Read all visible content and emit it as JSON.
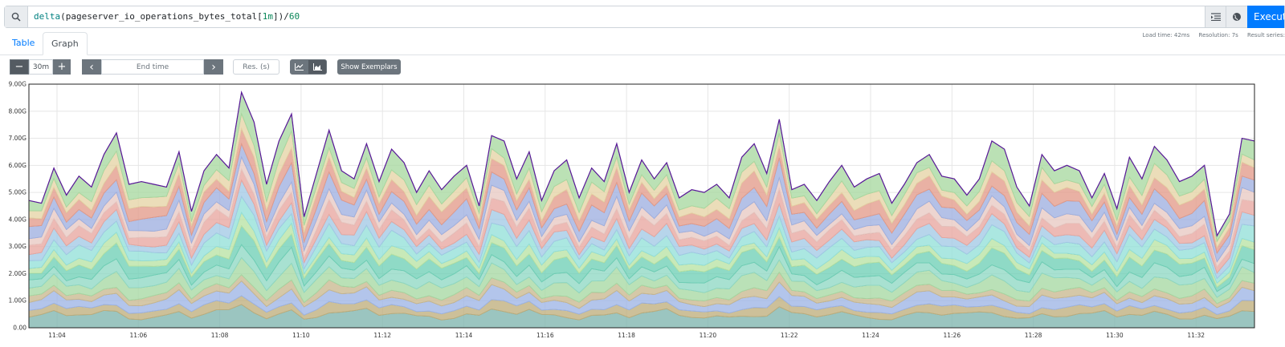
{
  "query": {
    "tokens": [
      {
        "text": "delta",
        "cls": "tok-fn"
      },
      {
        "text": "(",
        "cls": "tok-par"
      },
      {
        "text": "pageserver_io_operations_bytes_total",
        "cls": "tok-metric"
      },
      {
        "text": "[",
        "cls": "tok-par"
      },
      {
        "text": "1m",
        "cls": "tok-dur"
      },
      {
        "text": "])",
        "cls": "tok-par"
      },
      {
        "text": "/",
        "cls": "tok-par"
      },
      {
        "text": "60",
        "cls": "tok-num"
      }
    ],
    "execute_label": "Execute",
    "icons": [
      "search-icon",
      "format-icon",
      "globe-icon"
    ]
  },
  "tabs": [
    {
      "label": "Table"
    },
    {
      "label": "Graph"
    }
  ],
  "stats": {
    "load_time": "Load time: 42ms",
    "resolution": "Resolution: 7s",
    "result_series": "Result series:"
  },
  "controls": {
    "minus": "−",
    "range": "30m",
    "plus": "+",
    "prev": "‹",
    "end_time_placeholder": "End time",
    "next": "›",
    "res_placeholder": "Res. (s)",
    "exemplars_label": "Show Exemplars"
  },
  "chart_data": {
    "type": "area",
    "stacked": true,
    "x": [
      "11:04",
      "11:06",
      "11:08",
      "11:10",
      "11:12",
      "11:14",
      "11:16",
      "11:18",
      "11:20",
      "11:22",
      "11:24",
      "11:26",
      "11:28",
      "11:30",
      "11:32"
    ],
    "y_ticks": [
      "0.00",
      "1.00G",
      "2.00G",
      "3.00G",
      "4.00G",
      "5.00G",
      "6.00G",
      "7.00G",
      "8.00G",
      "9.00G"
    ],
    "ylim": [
      0,
      9
    ],
    "total": [
      4.7,
      4.6,
      5.9,
      4.9,
      5.6,
      5.2,
      6.4,
      7.2,
      5.3,
      5.4,
      5.3,
      5.2,
      6.5,
      4.3,
      5.8,
      6.4,
      5.9,
      8.7,
      7.6,
      5.3,
      6.9,
      7.9,
      4.1,
      5.7,
      7.3,
      5.8,
      5.5,
      6.8,
      5.4,
      6.6,
      6.1,
      5.0,
      5.8,
      5.1,
      5.6,
      6.0,
      4.5,
      7.1,
      6.9,
      5.5,
      6.5,
      4.7,
      5.8,
      6.2,
      4.8,
      5.9,
      5.4,
      6.8,
      5.0,
      6.2,
      5.5,
      6.1,
      4.8,
      5.1,
      5.0,
      5.3,
      4.8,
      6.3,
      6.8,
      5.7,
      7.7,
      5.1,
      5.3,
      4.7,
      5.4,
      6.0,
      5.2,
      5.5,
      5.7,
      4.6,
      5.3,
      6.1,
      6.4,
      5.6,
      5.5,
      4.9,
      5.5,
      6.9,
      6.6,
      5.2,
      4.5,
      6.4,
      5.8,
      6.0,
      5.8,
      4.8,
      5.7,
      4.4,
      6.3,
      5.5,
      6.7,
      6.2,
      5.4,
      5.6,
      6.0,
      3.4,
      4.2,
      7.0,
      6.9
    ],
    "series_colors": [
      "#7fb5ae",
      "#bfae7c",
      "#9db5e6",
      "#c9b88f",
      "#a7d8a3",
      "#8fd9c4",
      "#6fcfb6",
      "#b8e3a4",
      "#93e0d9",
      "#a3c9e6",
      "#e8a7a0",
      "#e8c9c3",
      "#9fb0e0",
      "#e39b8a",
      "#e6d3a5",
      "#a8d9a0"
    ],
    "series_share": [
      0.085,
      0.045,
      0.06,
      0.04,
      0.07,
      0.06,
      0.07,
      0.045,
      0.065,
      0.055,
      0.06,
      0.05,
      0.075,
      0.07,
      0.06,
      0.09
    ],
    "total_line_color": "#5a189a"
  }
}
